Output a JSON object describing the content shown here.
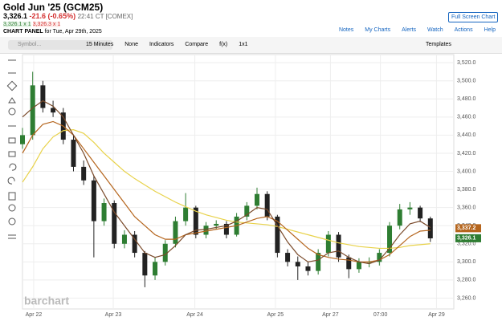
{
  "header": {
    "title": "Gold Jun '25 (GCM25)",
    "price": "3,326.1",
    "change": "-21.6 (-0.65%)",
    "time": "22:41 CT [COMEX]",
    "bid": "3,326.1 x 1",
    "ask": "3,326.3 x 1",
    "panel": "CHART PANEL",
    "panel_date": "for Tue, Apr 29th, 2025",
    "full_screen": "Full Screen Chart",
    "links": [
      "Notes",
      "My Charts",
      "Alerts",
      "Watch",
      "Actions",
      "Help"
    ]
  },
  "toolbar": {
    "symbol": "Symbol...",
    "items": [
      "15 Minutes",
      "None",
      "Indicators",
      "Compare",
      "f(x)",
      "1x1"
    ],
    "templates": "Templates"
  },
  "chart_data": {
    "type": "candlestick",
    "watermark": "barchart",
    "up_color": "#2e7d32",
    "down_color": "#222222",
    "open": [
      3430,
      3440,
      3495,
      3470,
      3465,
      3435,
      3405,
      3390,
      3345,
      3365,
      3320,
      3330,
      3310,
      3285,
      3300,
      3320,
      3345,
      3360,
      3330,
      3340,
      3342,
      3330,
      3350,
      3362,
      3375,
      3350,
      3310,
      3300,
      3295,
      3290,
      3310,
      3330,
      3305,
      3292,
      3300,
      3300,
      3310,
      3340,
      3358,
      3360,
      3348
    ],
    "high": [
      3448,
      3510,
      3500,
      3478,
      3470,
      3440,
      3412,
      3395,
      3370,
      3368,
      3335,
      3334,
      3312,
      3305,
      3324,
      3350,
      3376,
      3362,
      3344,
      3346,
      3345,
      3354,
      3366,
      3382,
      3378,
      3352,
      3314,
      3306,
      3300,
      3314,
      3334,
      3333,
      3308,
      3304,
      3305,
      3314,
      3344,
      3364,
      3366,
      3362,
      3350
    ],
    "low": [
      3425,
      3435,
      3465,
      3460,
      3430,
      3400,
      3385,
      3305,
      3340,
      3315,
      3315,
      3305,
      3272,
      3280,
      3296,
      3316,
      3340,
      3326,
      3326,
      3336,
      3326,
      3328,
      3346,
      3358,
      3346,
      3305,
      3295,
      3280,
      3285,
      3286,
      3306,
      3300,
      3282,
      3288,
      3294,
      3296,
      3306,
      3336,
      3352,
      3344,
      3322
    ],
    "close": [
      3440,
      3495,
      3470,
      3465,
      3435,
      3405,
      3390,
      3345,
      3365,
      3320,
      3330,
      3310,
      3285,
      3300,
      3320,
      3345,
      3360,
      3330,
      3340,
      3342,
      3330,
      3350,
      3362,
      3375,
      3350,
      3310,
      3300,
      3295,
      3290,
      3310,
      3330,
      3305,
      3292,
      3300,
      3300,
      3310,
      3340,
      3358,
      3360,
      3348,
      3326
    ],
    "series": [
      {
        "color": "#e8d24a",
        "values": [
          3388,
          3405,
          3425,
          3438,
          3445,
          3446,
          3442,
          3432,
          3420,
          3410,
          3400,
          3392,
          3385,
          3378,
          3372,
          3366,
          3361,
          3356,
          3352,
          3349,
          3346,
          3344,
          3343,
          3342,
          3341,
          3339,
          3336,
          3333,
          3330,
          3327,
          3324,
          3321,
          3319,
          3317,
          3316,
          3315,
          3315,
          3316,
          3318,
          3319,
          3320
        ]
      },
      {
        "color": "#b5651d",
        "values": [
          3420,
          3440,
          3452,
          3455,
          3450,
          3440,
          3425,
          3410,
          3395,
          3380,
          3365,
          3350,
          3340,
          3330,
          3325,
          3325,
          3330,
          3332,
          3334,
          3336,
          3338,
          3340,
          3344,
          3348,
          3350,
          3345,
          3335,
          3325,
          3315,
          3308,
          3305,
          3303,
          3302,
          3300,
          3300,
          3302,
          3308,
          3318,
          3328,
          3334,
          3335
        ]
      },
      {
        "color": "#7a4a2a",
        "values": [
          3460,
          3470,
          3478,
          3472,
          3460,
          3440,
          3420,
          3395,
          3375,
          3355,
          3340,
          3325,
          3310,
          3305,
          3308,
          3318,
          3330,
          3335,
          3336,
          3338,
          3340,
          3345,
          3352,
          3360,
          3358,
          3340,
          3322,
          3308,
          3300,
          3302,
          3310,
          3312,
          3305,
          3300,
          3298,
          3302,
          3315,
          3330,
          3342,
          3345,
          3338
        ]
      }
    ],
    "last_labels": [
      {
        "value": 3337.2,
        "label": "3,337.2",
        "color": "#b5651d"
      },
      {
        "value": 3326.1,
        "label": "3,326.1",
        "color": "#2e7d32"
      }
    ],
    "xlim": [
      0,
      42.3
    ],
    "xticks": [
      {
        "value": 1.1,
        "label": "Apr 22"
      },
      {
        "value": 8.9,
        "label": "Apr 23"
      },
      {
        "value": 16.9,
        "label": "Apr 24"
      },
      {
        "value": 24.8,
        "label": "Apr 25"
      },
      {
        "value": 30.2,
        "label": "Apr 27"
      },
      {
        "value": 35.1,
        "label": "07:00"
      },
      {
        "value": 40.6,
        "label": "Apr 29"
      }
    ],
    "ylim": [
      3248,
      3529
    ],
    "yticks": [
      {
        "value": 3260,
        "label": "3,260.0"
      },
      {
        "value": 3280,
        "label": "3,280.0"
      },
      {
        "value": 3300,
        "label": "3,300.0"
      },
      {
        "value": 3320,
        "label": "3,320.0"
      },
      {
        "value": 3340,
        "label": "3,340.0"
      },
      {
        "value": 3360,
        "label": "3,360.0"
      },
      {
        "value": 3380,
        "label": "3,380.0"
      },
      {
        "value": 3400,
        "label": "3,400.0"
      },
      {
        "value": 3420,
        "label": "3,420.0"
      },
      {
        "value": 3440,
        "label": "3,440.0"
      },
      {
        "value": 3460,
        "label": "3,460.0"
      },
      {
        "value": 3480,
        "label": "3,480.0"
      },
      {
        "value": 3500,
        "label": "3,500.0"
      },
      {
        "value": 3520,
        "label": "3,520.0"
      }
    ],
    "grid": true
  }
}
